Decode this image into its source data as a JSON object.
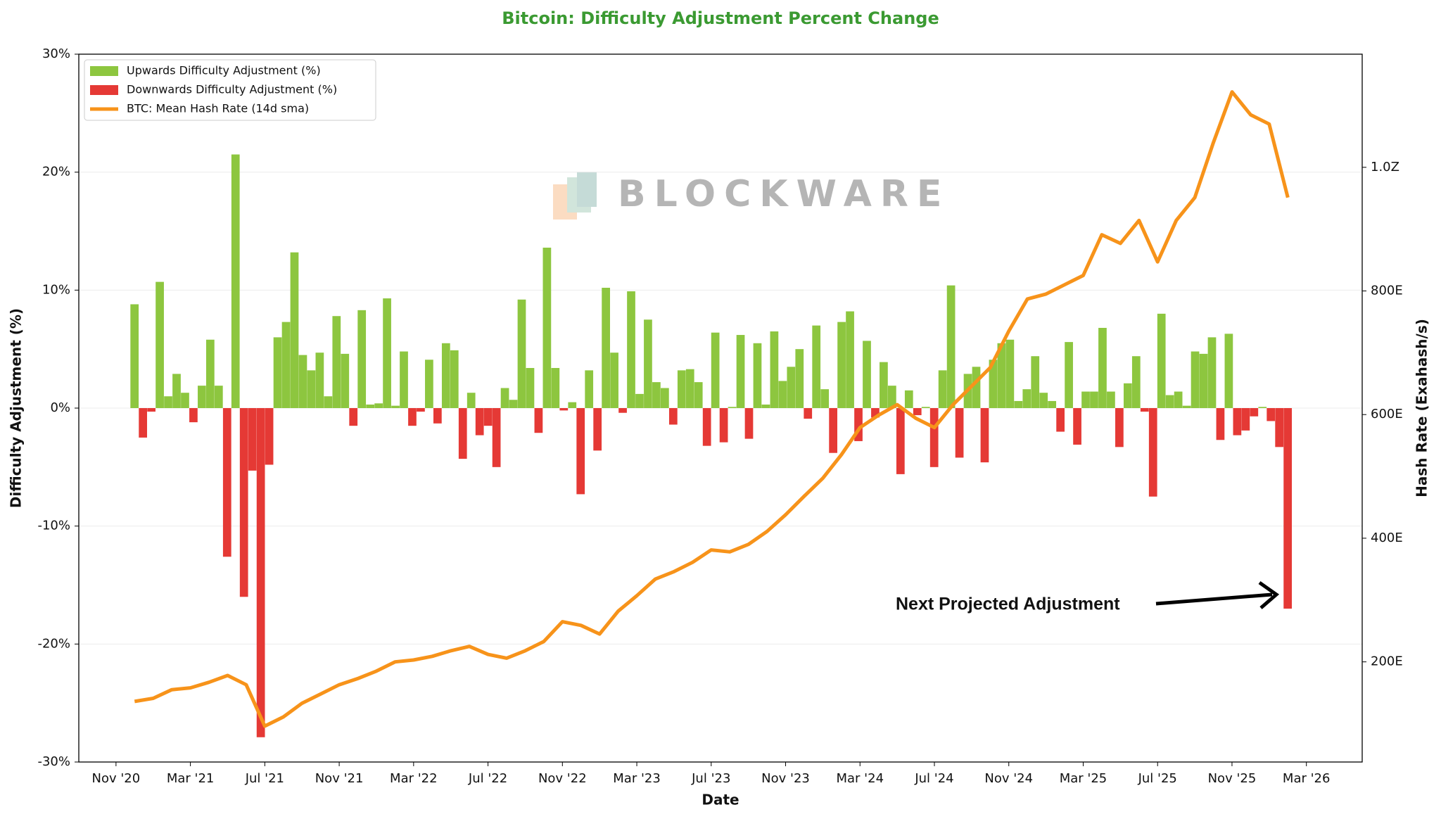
{
  "chart_data": {
    "type": "bar_line",
    "title": "Bitcoin: Difficulty Adjustment Percent Change",
    "watermark": "BLOCKWARE",
    "xlabel": "Date",
    "ylabel": "Difficulty Adjustment (%)",
    "y2label": "Hash Rate (Exahash/s)",
    "annotation": "Next Projected Adjustment",
    "xlim": [
      "2020-09",
      "2026-06"
    ],
    "xticks": [
      {
        "value": "2020-11",
        "label": "Nov '20"
      },
      {
        "value": "2021-03",
        "label": "Mar '21"
      },
      {
        "value": "2021-07",
        "label": "Jul '21"
      },
      {
        "value": "2021-11",
        "label": "Nov '21"
      },
      {
        "value": "2022-03",
        "label": "Mar '22"
      },
      {
        "value": "2022-07",
        "label": "Jul '22"
      },
      {
        "value": "2022-11",
        "label": "Nov '22"
      },
      {
        "value": "2023-03",
        "label": "Mar '23"
      },
      {
        "value": "2023-07",
        "label": "Jul '23"
      },
      {
        "value": "2023-11",
        "label": "Nov '23"
      },
      {
        "value": "2024-03",
        "label": "Mar '24"
      },
      {
        "value": "2024-07",
        "label": "Jul '24"
      },
      {
        "value": "2024-11",
        "label": "Nov '24"
      },
      {
        "value": "2025-03",
        "label": "Mar '25"
      },
      {
        "value": "2025-07",
        "label": "Jul '25"
      },
      {
        "value": "2025-11",
        "label": "Nov '25"
      },
      {
        "value": "2026-03",
        "label": "Mar '26"
      }
    ],
    "ylim": [
      -30,
      30
    ],
    "yticks": [
      {
        "value": -30,
        "label": "-30%"
      },
      {
        "value": -20,
        "label": "-20%"
      },
      {
        "value": -10,
        "label": "-10%"
      },
      {
        "value": 0,
        "label": "0%"
      },
      {
        "value": 10,
        "label": "10%"
      },
      {
        "value": 20,
        "label": "20%"
      },
      {
        "value": 30,
        "label": "30%"
      }
    ],
    "y2lim": [
      38,
      1183
    ],
    "y2ticks": [
      {
        "value": 200,
        "label": "200E"
      },
      {
        "value": 400,
        "label": "400E"
      },
      {
        "value": 600,
        "label": "600E"
      },
      {
        "value": 800,
        "label": "800E"
      },
      {
        "value": 1000,
        "label": "1.0Z"
      }
    ],
    "grid": true,
    "legend": "upper left",
    "adjustments": [
      8.8,
      -2.5,
      -0.3,
      10.7,
      1.0,
      2.9,
      1.3,
      -1.2,
      1.9,
      5.8,
      1.9,
      -12.6,
      21.5,
      -16.0,
      -5.3,
      -27.9,
      -4.8,
      6.0,
      7.3,
      13.2,
      4.5,
      3.2,
      4.7,
      1.0,
      7.8,
      4.6,
      -1.5,
      8.3,
      0.3,
      0.4,
      9.3,
      0.2,
      4.8,
      -1.5,
      -0.3,
      4.1,
      -1.3,
      5.5,
      4.9,
      -4.3,
      1.3,
      -2.3,
      -1.5,
      -5.0,
      1.7,
      0.7,
      9.2,
      3.4,
      -2.1,
      13.6,
      3.4,
      -0.2,
      0.5,
      -7.3,
      3.2,
      -3.6,
      10.2,
      4.7,
      -0.4,
      9.9,
      1.2,
      7.5,
      2.2,
      1.7,
      -1.4,
      3.2,
      3.3,
      2.2,
      -3.2,
      6.4,
      -2.9,
      0.1,
      6.2,
      -2.6,
      5.5,
      0.3,
      6.5,
      2.3,
      3.5,
      5.0,
      -0.9,
      7.0,
      1.6,
      -3.8,
      7.3,
      8.2,
      -2.8,
      5.7,
      -0.8,
      3.9,
      1.9,
      -5.6,
      1.5,
      -0.6,
      0.1,
      -5.0,
      3.2,
      10.4,
      -4.2,
      2.9,
      3.5,
      -4.6,
      4.1,
      5.5,
      5.8,
      0.6,
      1.6,
      4.4,
      1.3,
      0.6,
      -2.0,
      5.6,
      -3.1,
      1.4,
      1.4,
      6.8,
      1.4,
      -3.3,
      2.1,
      4.4,
      -0.3,
      -7.5,
      8.0,
      1.1,
      1.4,
      0.2,
      4.8,
      4.6,
      6.0,
      -2.7,
      6.3,
      -2.3,
      -1.9,
      -0.7,
      0.1,
      -1.1,
      -3.3,
      -17.0
    ],
    "series": [
      {
        "name": "Upwards Difficulty Adjustment (%)",
        "color": "#8dc63f"
      },
      {
        "name": "Downwards Difficulty Adjustment (%)",
        "color": "#e53935"
      },
      {
        "name": "BTC: Mean Hash Rate (14d sma)",
        "color": "#f7931a",
        "axis": "y2",
        "x": [
          "2020-12",
          "2021-01",
          "2021-02",
          "2021-03",
          "2021-04",
          "2021-05",
          "2021-06",
          "2021-07",
          "2021-08",
          "2021-09",
          "2021-10",
          "2021-11",
          "2021-12",
          "2022-01",
          "2022-02",
          "2022-03",
          "2022-04",
          "2022-05",
          "2022-06",
          "2022-07",
          "2022-08",
          "2022-09",
          "2022-10",
          "2022-11",
          "2022-12",
          "2023-01",
          "2023-02",
          "2023-03",
          "2023-04",
          "2023-05",
          "2023-06",
          "2023-07",
          "2023-08",
          "2023-09",
          "2023-10",
          "2023-11",
          "2023-12",
          "2024-01",
          "2024-02",
          "2024-03",
          "2024-04",
          "2024-05",
          "2024-06",
          "2024-07",
          "2024-08",
          "2024-09",
          "2024-10",
          "2024-11",
          "2024-12",
          "2025-01",
          "2025-02",
          "2025-03",
          "2025-04",
          "2025-05",
          "2025-06",
          "2025-07",
          "2025-08",
          "2025-09",
          "2025-10",
          "2025-11",
          "2025-12",
          "2026-01",
          "2026-02"
        ],
        "values": [
          136,
          141,
          155,
          158,
          167,
          178,
          163,
          96,
          111,
          133,
          148,
          163,
          173,
          185,
          200,
          203,
          209,
          218,
          225,
          212,
          206,
          218,
          233,
          265,
          259,
          245,
          282,
          307,
          334,
          346,
          361,
          381,
          378,
          390,
          411,
          438,
          468,
          497,
          535,
          579,
          599,
          616,
          594,
          579,
          616,
          646,
          676,
          735,
          787,
          795,
          810,
          825,
          891,
          877,
          914,
          847,
          914,
          951,
          1040,
          1122,
          1085,
          1070,
          951
        ]
      }
    ]
  }
}
